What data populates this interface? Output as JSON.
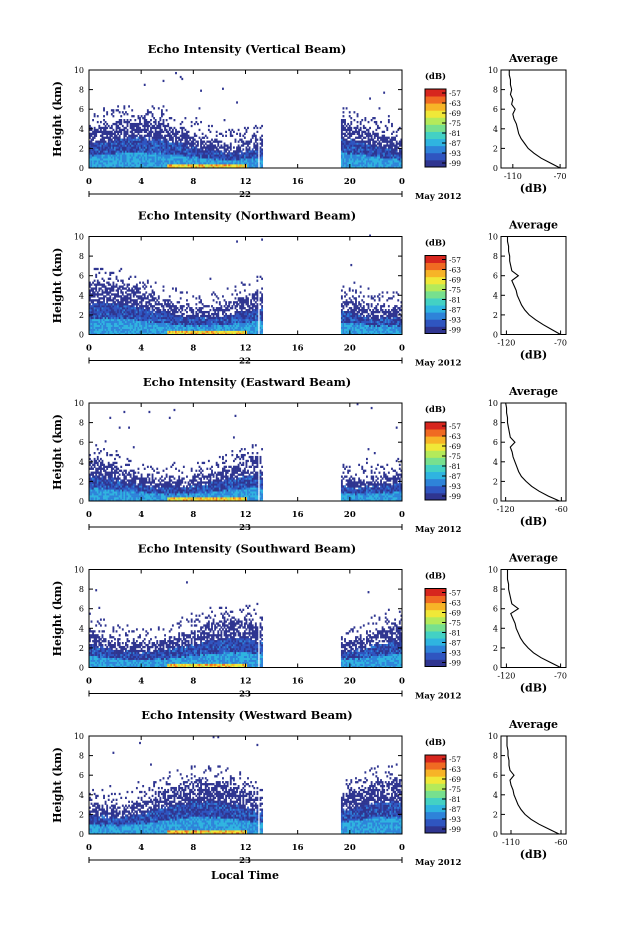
{
  "chart_data": [
    {
      "type": "heatmap",
      "title": "Echo Intensity (Vertical Beam)",
      "ylabel": "Height (km)",
      "ylim": [
        0,
        10
      ],
      "yticks": [
        "0",
        "2",
        "4",
        "6",
        "8",
        "10"
      ],
      "xlim": [
        0,
        24
      ],
      "xticks": [
        "0",
        "4",
        "8",
        "12",
        "16",
        "20",
        "0"
      ],
      "date_label": "22",
      "month_label": "May 2012",
      "data_gap": [
        12.9,
        19.3
      ],
      "echo_top_km": 5.0,
      "colorbar": {
        "unit": "(dB)",
        "ticks": [
          "-57",
          "-63",
          "-69",
          "-75",
          "-81",
          "-87",
          "-93",
          "-99"
        ]
      },
      "profile": {
        "title": "Average",
        "xlabel": "(dB)",
        "xticks": [
          "-110",
          "-70"
        ],
        "xlim": [
          -120,
          -65
        ],
        "ylim": [
          0,
          10
        ],
        "yticks": [
          "0",
          "2",
          "4",
          "6",
          "8",
          "10"
        ],
        "heights": [
          0,
          0.5,
          1,
          1.5,
          2,
          2.5,
          3,
          3.5,
          4,
          4.5,
          5,
          5.5,
          6,
          6.5,
          7,
          7.5,
          8,
          8.5,
          9,
          9.5,
          10
        ],
        "values": [
          -70,
          -78,
          -86,
          -92,
          -97,
          -100,
          -103,
          -105,
          -106,
          -107,
          -109,
          -110,
          -108,
          -111,
          -110,
          -112,
          -111,
          -112,
          -112,
          -113,
          -113
        ]
      }
    },
    {
      "type": "heatmap",
      "title": "Echo Intensity (Northward Beam)",
      "ylabel": "Height (km)",
      "ylim": [
        0,
        10
      ],
      "yticks": [
        "0",
        "2",
        "4",
        "6",
        "8",
        "10"
      ],
      "xlim": [
        0,
        24
      ],
      "xticks": [
        "0",
        "4",
        "8",
        "12",
        "16",
        "20",
        "0"
      ],
      "date_label": "22",
      "month_label": "May 2012",
      "data_gap": [
        12.9,
        19.3
      ],
      "echo_top_km": 5.2,
      "colorbar": {
        "unit": "(dB)",
        "ticks": [
          "-57",
          "-63",
          "-69",
          "-75",
          "-81",
          "-87",
          "-93",
          "-99"
        ]
      },
      "profile": {
        "title": "Average",
        "xlabel": "(dB)",
        "xticks": [
          "-120",
          "-70"
        ],
        "xlim": [
          -125,
          -65
        ],
        "ylim": [
          0,
          10
        ],
        "yticks": [
          "0",
          "2",
          "4",
          "6",
          "8",
          "10"
        ],
        "heights": [
          0,
          0.5,
          1,
          1.5,
          2,
          2.5,
          3,
          3.5,
          4,
          4.5,
          5,
          5.5,
          6,
          6.5,
          7,
          7.5,
          8,
          8.5,
          9,
          9.5,
          10
        ],
        "values": [
          -70,
          -78,
          -86,
          -93,
          -99,
          -103,
          -106,
          -108,
          -110,
          -111,
          -113,
          -115,
          -109,
          -115,
          -116,
          -117,
          -117,
          -118,
          -118,
          -119,
          -119
        ]
      }
    },
    {
      "type": "heatmap",
      "title": "Echo Intensity (Eastward Beam)",
      "ylabel": "Height (km)",
      "ylim": [
        0,
        10
      ],
      "yticks": [
        "0",
        "2",
        "4",
        "6",
        "8",
        "10"
      ],
      "xlim": [
        0,
        24
      ],
      "xticks": [
        "0",
        "4",
        "8",
        "12",
        "16",
        "20",
        "0"
      ],
      "date_label": "23",
      "month_label": "May 2012",
      "data_gap": [
        12.9,
        19.3
      ],
      "echo_top_km": 4.2,
      "colorbar": {
        "unit": "(dB)",
        "ticks": [
          "-57",
          "-63",
          "-69",
          "-75",
          "-81",
          "-87",
          "-93",
          "-99"
        ]
      },
      "profile": {
        "title": "Average",
        "xlabel": "(dB)",
        "xticks": [
          "-120",
          "-60"
        ],
        "xlim": [
          -125,
          -55
        ],
        "ylim": [
          0,
          10
        ],
        "yticks": [
          "0",
          "2",
          "4",
          "6",
          "8",
          "10"
        ],
        "heights": [
          0,
          0.5,
          1,
          1.5,
          2,
          2.5,
          3,
          3.5,
          4,
          4.5,
          5,
          5.5,
          6,
          6.5,
          7,
          7.5,
          8,
          8.5,
          9,
          9.5,
          10
        ],
        "values": [
          -62,
          -74,
          -84,
          -92,
          -98,
          -103,
          -106,
          -108,
          -110,
          -112,
          -113,
          -115,
          -110,
          -115,
          -116,
          -117,
          -118,
          -118,
          -119,
          -119,
          -120
        ]
      }
    },
    {
      "type": "heatmap",
      "title": "Echo Intensity (Southward Beam)",
      "ylabel": "Height (km)",
      "ylim": [
        0,
        10
      ],
      "yticks": [
        "0",
        "2",
        "4",
        "6",
        "8",
        "10"
      ],
      "xlim": [
        0,
        24
      ],
      "xticks": [
        "0",
        "4",
        "8",
        "12",
        "16",
        "20",
        "0"
      ],
      "date_label": "23",
      "month_label": "May 2012",
      "data_gap": [
        12.9,
        19.3
      ],
      "echo_top_km": 4.8,
      "colorbar": {
        "unit": "(dB)",
        "ticks": [
          "-57",
          "-63",
          "-69",
          "-75",
          "-81",
          "-87",
          "-93",
          "-99"
        ]
      },
      "profile": {
        "title": "Average",
        "xlabel": "(dB)",
        "xticks": [
          "-120",
          "-70"
        ],
        "xlim": [
          -125,
          -65
        ],
        "ylim": [
          0,
          10
        ],
        "yticks": [
          "0",
          "2",
          "4",
          "6",
          "8",
          "10"
        ],
        "heights": [
          0,
          0.5,
          1,
          1.5,
          2,
          2.5,
          3,
          3.5,
          4,
          4.5,
          5,
          5.5,
          6,
          6.5,
          7,
          7.5,
          8,
          8.5,
          9,
          9.5,
          10
        ],
        "values": [
          -70,
          -79,
          -88,
          -95,
          -100,
          -104,
          -107,
          -109,
          -111,
          -112,
          -114,
          -116,
          -109,
          -115,
          -116,
          -117,
          -118,
          -118,
          -119,
          -119,
          -119
        ]
      }
    },
    {
      "type": "heatmap",
      "title": "Echo Intensity (Westward Beam)",
      "ylabel": "Height (km)",
      "ylim": [
        0,
        10
      ],
      "yticks": [
        "0",
        "2",
        "4",
        "6",
        "8",
        "10"
      ],
      "xlim": [
        0,
        24
      ],
      "xticks": [
        "0",
        "4",
        "8",
        "12",
        "16",
        "20",
        "0"
      ],
      "date_label": "23",
      "month_label": "May 2012",
      "data_gap": [
        12.9,
        19.3
      ],
      "echo_top_km": 5.4,
      "colorbar": {
        "unit": "(dB)",
        "ticks": [
          "-57",
          "-63",
          "-69",
          "-75",
          "-81",
          "-87",
          "-93",
          "-99"
        ]
      },
      "profile": {
        "title": "Average",
        "xlabel": "(dB)",
        "xticks": [
          "-110",
          "-60"
        ],
        "xlim": [
          -120,
          -55
        ],
        "ylim": [
          0,
          10
        ],
        "yticks": [
          "0",
          "2",
          "4",
          "6",
          "8",
          "10"
        ],
        "heights": [
          0,
          0.5,
          1,
          1.5,
          2,
          2.5,
          3,
          3.5,
          4,
          4.5,
          5,
          5.5,
          6,
          6.5,
          7,
          7.5,
          8,
          8.5,
          9,
          9.5,
          10
        ],
        "values": [
          -62,
          -72,
          -82,
          -90,
          -96,
          -100,
          -103,
          -105,
          -107,
          -108,
          -110,
          -111,
          -107,
          -111,
          -112,
          -112,
          -113,
          -113,
          -114,
          -114,
          -114
        ]
      }
    }
  ],
  "footer": {
    "xlabel": "Local Time"
  },
  "colors": {
    "colormap": [
      "#2f3590",
      "#2f55c0",
      "#2e83d9",
      "#2fb4e0",
      "#43d1c4",
      "#77e08e",
      "#b4ea5a",
      "#f0e838",
      "#f7b427",
      "#f06a22",
      "#d7261e"
    ]
  }
}
